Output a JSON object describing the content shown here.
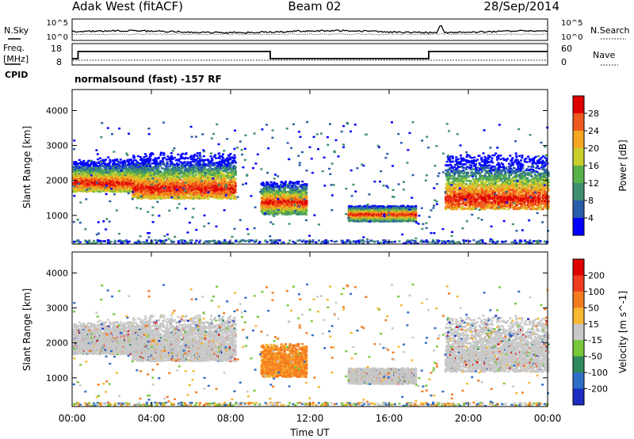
{
  "header": {
    "title": "Adak West (fitACF)",
    "beam": "Beam 02",
    "date": "28/Sep/2014"
  },
  "noise_panel": {
    "left_label": "N.Sky",
    "right_label": "N.Search",
    "left_ticks": [
      "10^5",
      "10^0"
    ],
    "right_ticks": [
      "10^5",
      "10^0"
    ]
  },
  "freq_panel": {
    "left_label_line1": "Freq.",
    "left_label_line2": "[MHz]",
    "cpid_label": "CPID",
    "left_ticks": [
      "18",
      "8"
    ],
    "right_label": "Nave",
    "right_ticks": [
      "60",
      "0"
    ],
    "step_series": {
      "x_hours": [
        0,
        0.3,
        0.3,
        10.0,
        10.0,
        18.0,
        18.0,
        24.0
      ],
      "level": [
        0.0,
        0.0,
        1.0,
        1.0,
        0.0,
        0.0,
        1.0,
        1.0
      ]
    }
  },
  "cpid_text": "normalsound (fast) -157 RF",
  "power_panel": {
    "ylabel": "Slant Range [km]",
    "yticks": [
      "4000",
      "3000",
      "2000",
      "1000"
    ],
    "colorbar_label": "Power [dB]",
    "colorbar_ticks": [
      "28",
      "24",
      "20",
      "16",
      "12",
      "8",
      "4"
    ]
  },
  "velocity_panel": {
    "ylabel": "Slant Range [km]",
    "yticks": [
      "4000",
      "3000",
      "2000",
      "1000"
    ],
    "colorbar_label": "Velocity [m s^-1]",
    "colorbar_ticks": [
      "200",
      "100",
      "50",
      "15",
      "-15",
      "-50",
      "-100",
      "-200"
    ]
  },
  "xaxis": {
    "label": "Time UT",
    "ticks": [
      "00:00",
      "04:00",
      "08:00",
      "12:00",
      "16:00",
      "20:00",
      "00:00"
    ]
  },
  "chart_data": {
    "type": "heatmap",
    "title": "Adak West (fitACF)",
    "subtitle": "Beam 02",
    "date": "28/Sep/2014",
    "xlabel": "Time UT",
    "ylabel": "Slant Range [km]",
    "xlim_hours": [
      0,
      24
    ],
    "ylim_km": [
      180,
      4600
    ],
    "echo_regions": [
      {
        "t0": 0.0,
        "t1": 3.9,
        "r0": 1700,
        "r1": 2700,
        "peak": 1950
      },
      {
        "t0": 3.0,
        "t1": 8.2,
        "r0": 1500,
        "r1": 2900,
        "peak": 1800
      },
      {
        "t0": 9.5,
        "t1": 11.8,
        "r0": 1050,
        "r1": 2000,
        "peak": 1400
      },
      {
        "t0": 13.9,
        "t1": 17.3,
        "r0": 850,
        "r1": 1300,
        "peak": 1050
      },
      {
        "t0": 18.8,
        "t1": 24.0,
        "r0": 1200,
        "r1": 3000,
        "peak": 1500
      }
    ],
    "power_colorbar": {
      "label": "Power [dB]",
      "min": 0,
      "max": 32,
      "ticks": [
        4,
        8,
        12,
        16,
        20,
        24,
        28
      ],
      "colors": [
        "#0000ff",
        "#2a5caa",
        "#3f8f6f",
        "#58b04a",
        "#c8cf2a",
        "#f5a623",
        "#ef5a1e",
        "#e00000"
      ]
    },
    "velocity_colorbar": {
      "label": "Velocity [m s^-1]",
      "min": -250,
      "max": 250,
      "ticks": [
        200,
        100,
        50,
        15,
        -15,
        -50,
        -100,
        -200
      ],
      "colors": [
        "#1b2cc1",
        "#2f6ec7",
        "#2e8a5c",
        "#78c83a",
        "#c8c8c8",
        "#f7b733",
        "#f47b20",
        "#ef3b1e",
        "#e00000"
      ]
    }
  }
}
